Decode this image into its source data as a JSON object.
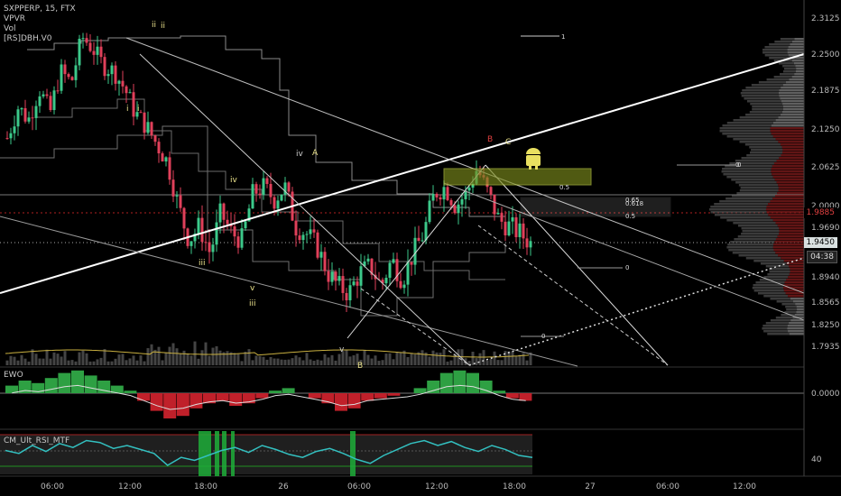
{
  "header": {
    "symbol_line": "SXPPERP, 15, FTX",
    "indicators": [
      "VPVR",
      "Vol",
      "[RS]DBH.V0"
    ]
  },
  "colors": {
    "background": "#000000",
    "up": "#3cc98a",
    "down": "#e0405a",
    "trend": "#ffffff",
    "fib_box": "#7b8b1c",
    "ewo_up": "#2ea043",
    "ewo_down": "#c0202a",
    "rsi": "#33c0c0"
  },
  "price_tags": {
    "red_level": "1.9885",
    "last_price": "1.9450",
    "countdown": "04:38"
  },
  "chart_data": [
    {
      "type": "candlestick",
      "title": "",
      "y_ticks": [
        "2.3125",
        "2.2500",
        "2.1875",
        "2.1250",
        "2.0625",
        "2.0000",
        "1.9690",
        "1.8940",
        "1.8565",
        "1.8250",
        "1.7935"
      ],
      "ylim": [
        1.775,
        2.33
      ],
      "x_ticks": [
        "06:00",
        "12:00",
        "18:00",
        "26",
        "06:00",
        "12:00",
        "18:00",
        "27",
        "06:00",
        "12:00"
      ],
      "close_path": [
        2.11,
        2.16,
        2.14,
        2.19,
        2.15,
        2.22,
        2.2,
        2.28,
        2.26,
        2.23,
        2.22,
        2.19,
        2.15,
        2.13,
        2.1,
        2.07,
        2.0,
        1.95,
        1.97,
        1.93,
        1.99,
        1.96,
        1.95,
        2.02,
        2.03,
        2.01,
        2.03,
        1.97,
        1.96,
        1.94,
        1.9,
        1.88,
        1.87,
        1.9,
        1.91,
        1.88,
        1.92,
        1.89,
        1.93,
        1.96,
        2.02,
        2.03,
        2.0,
        2.02,
        2.06,
        2.02,
        1.98,
        1.97,
        1.96,
        1.945
      ],
      "wave_labels": [
        {
          "text": "ii",
          "color": "#e8e08a"
        },
        {
          "text": "ii",
          "color": "#e8e08a"
        },
        {
          "text": "i",
          "color": "#e8e08a"
        },
        {
          "text": "i",
          "color": "#e8e08a"
        },
        {
          "text": "iv",
          "color": "#e8e08a"
        },
        {
          "text": "iii",
          "color": "#e8e08a"
        },
        {
          "text": "v",
          "color": "#e8e08a"
        },
        {
          "text": "iii",
          "color": "#e8e08a"
        },
        {
          "text": "iv",
          "color": "#cccccc"
        },
        {
          "text": "A",
          "color": "#e8e08a"
        },
        {
          "text": "v",
          "color": "#cccccc"
        },
        {
          "text": "B",
          "color": "#e8e08a"
        },
        {
          "text": "B",
          "color": "#e04040"
        },
        {
          "text": "C",
          "color": "#e8e08a"
        }
      ],
      "fib_labels": [
        "0.5",
        "0.65",
        "0.618",
        "0.5",
        "0",
        "0",
        "1",
        "0",
        "0"
      ]
    },
    {
      "type": "histogram",
      "title": "EWO",
      "y_ticks": [
        "0.0000"
      ],
      "values": [
        0.3,
        0.5,
        0.4,
        0.6,
        0.8,
        0.9,
        0.7,
        0.5,
        0.3,
        0.1,
        -0.3,
        -0.7,
        -1.0,
        -0.9,
        -0.6,
        -0.4,
        -0.3,
        -0.5,
        -0.4,
        -0.2,
        0.1,
        0.2,
        0.0,
        -0.2,
        -0.4,
        -0.7,
        -0.6,
        -0.3,
        -0.2,
        -0.1,
        0.0,
        0.2,
        0.5,
        0.8,
        0.9,
        0.8,
        0.5,
        0.1,
        -0.2,
        -0.3
      ]
    },
    {
      "type": "line",
      "title": "CM_Ult_RSI_MTF",
      "y_ticks": [
        "40"
      ],
      "values": [
        45,
        42,
        50,
        44,
        52,
        48,
        55,
        53,
        47,
        50,
        46,
        42,
        30,
        38,
        35,
        40,
        45,
        48,
        43,
        50,
        46,
        41,
        38,
        44,
        47,
        42,
        36,
        32,
        40,
        46,
        52,
        55,
        50,
        54,
        48,
        44,
        50,
        46,
        40,
        38
      ]
    }
  ]
}
